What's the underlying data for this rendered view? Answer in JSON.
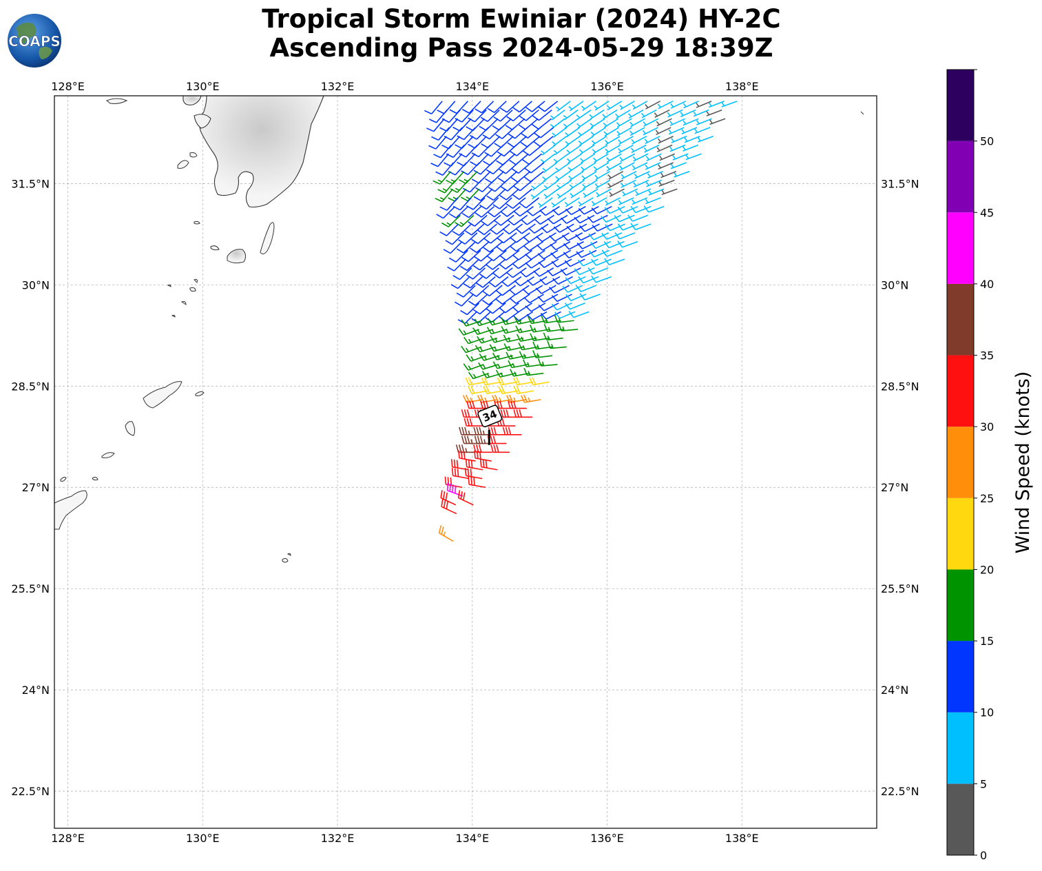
{
  "title": {
    "line1": "Tropical Storm Ewiniar (2024) HY-2C",
    "line2": "Ascending Pass 2024-05-29 18:39Z"
  },
  "logo": {
    "text": "COAPS",
    "icon": "earth-globe-logo-icon"
  },
  "map": {
    "lon_range": [
      127.8,
      140.0
    ],
    "lat_range": [
      21.95,
      32.8
    ],
    "lon_ticks": [
      {
        "value": 128,
        "label": "128°E"
      },
      {
        "value": 130,
        "label": "130°E"
      },
      {
        "value": 132,
        "label": "132°E"
      },
      {
        "value": 134,
        "label": "134°E"
      },
      {
        "value": 136,
        "label": "136°E"
      },
      {
        "value": 138,
        "label": "138°E"
      }
    ],
    "lat_ticks": [
      {
        "value": 31.5,
        "label": "31.5°N"
      },
      {
        "value": 30,
        "label": "30°N"
      },
      {
        "value": 28.5,
        "label": "28.5°N"
      },
      {
        "value": 27,
        "label": "27°N"
      },
      {
        "value": 25.5,
        "label": "25.5°N"
      },
      {
        "value": 24,
        "label": "24°N"
      },
      {
        "value": 22.5,
        "label": "22.5°N"
      }
    ],
    "grid": true,
    "storm_marker": {
      "label": "34",
      "lon": 134.25,
      "lat": 27.75
    }
  },
  "colorbar": {
    "label": "Wind Speed (knots)",
    "ticks": [
      "0",
      "5",
      "10",
      "15",
      "20",
      "25",
      "30",
      "35",
      "40",
      "45",
      "50"
    ],
    "bins": [
      {
        "min": 0,
        "max": 5,
        "color": "#585858"
      },
      {
        "min": 5,
        "max": 10,
        "color": "#00bfff"
      },
      {
        "min": 10,
        "max": 15,
        "color": "#0036ff"
      },
      {
        "min": 15,
        "max": 20,
        "color": "#009300"
      },
      {
        "min": 20,
        "max": 25,
        "color": "#ffd80f"
      },
      {
        "min": 25,
        "max": 30,
        "color": "#ff8e0b"
      },
      {
        "min": 30,
        "max": 35,
        "color": "#ff1010"
      },
      {
        "min": 35,
        "max": 40,
        "color": "#813b2b"
      },
      {
        "min": 40,
        "max": 45,
        "color": "#ff00ff"
      },
      {
        "min": 45,
        "max": 50,
        "color": "#8200b4"
      },
      {
        "min": 50,
        "max": 55,
        "color": "#2d0060"
      }
    ]
  }
}
